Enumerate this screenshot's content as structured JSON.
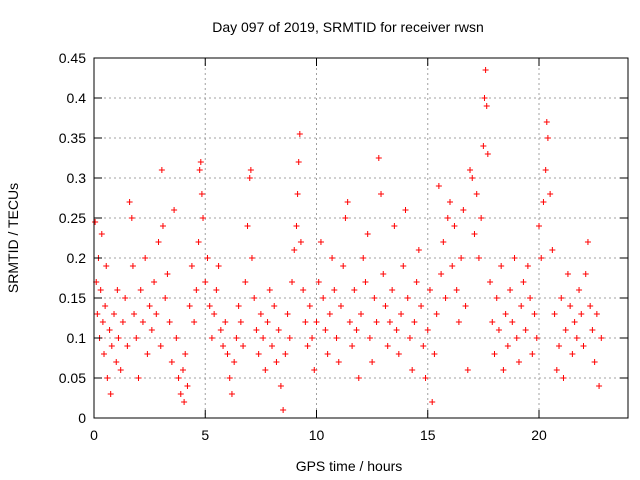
{
  "chart_data": {
    "type": "scatter",
    "title": "Day 097 of 2019, SRMTID for receiver rwsn",
    "xlabel": "GPS time / hours",
    "ylabel": "SRMTID / TECUs",
    "xlim": [
      0,
      24
    ],
    "ylim": [
      0,
      0.45
    ],
    "x_ticks": [
      0,
      5,
      10,
      15,
      20
    ],
    "x_tick_labels": [
      "0",
      "5",
      "10",
      "15",
      "20"
    ],
    "y_ticks": [
      0,
      0.05,
      0.1,
      0.15,
      0.2,
      0.25,
      0.3,
      0.35,
      0.4,
      0.45
    ],
    "y_tick_labels": [
      "0",
      "0.05",
      "0.1",
      "0.15",
      "0.2",
      "0.25",
      "0.3",
      "0.35",
      "0.4",
      "0.45"
    ],
    "grid": true,
    "marker": "+",
    "color": "#ff0000",
    "series": [
      {
        "name": "SRMTID",
        "points": [
          [
            0.05,
            0.245
          ],
          [
            0.1,
            0.17
          ],
          [
            0.15,
            0.13
          ],
          [
            0.2,
            0.2
          ],
          [
            0.25,
            0.1
          ],
          [
            0.3,
            0.16
          ],
          [
            0.35,
            0.23
          ],
          [
            0.4,
            0.12
          ],
          [
            0.45,
            0.08
          ],
          [
            0.5,
            0.14
          ],
          [
            0.55,
            0.19
          ],
          [
            0.6,
            0.05
          ],
          [
            0.7,
            0.11
          ],
          [
            0.75,
            0.03
          ],
          [
            0.8,
            0.09
          ],
          [
            0.9,
            0.13
          ],
          [
            1.0,
            0.07
          ],
          [
            1.05,
            0.16
          ],
          [
            1.1,
            0.1
          ],
          [
            1.2,
            0.06
          ],
          [
            1.3,
            0.12
          ],
          [
            1.4,
            0.15
          ],
          [
            1.5,
            0.09
          ],
          [
            1.6,
            0.27
          ],
          [
            1.7,
            0.25
          ],
          [
            1.75,
            0.19
          ],
          [
            1.8,
            0.13
          ],
          [
            1.9,
            0.1
          ],
          [
            2.0,
            0.05
          ],
          [
            2.1,
            0.16
          ],
          [
            2.2,
            0.12
          ],
          [
            2.3,
            0.2
          ],
          [
            2.4,
            0.08
          ],
          [
            2.5,
            0.14
          ],
          [
            2.6,
            0.11
          ],
          [
            2.7,
            0.17
          ],
          [
            2.8,
            0.13
          ],
          [
            2.9,
            0.22
          ],
          [
            3.0,
            0.09
          ],
          [
            3.05,
            0.31
          ],
          [
            3.1,
            0.24
          ],
          [
            3.2,
            0.15
          ],
          [
            3.3,
            0.18
          ],
          [
            3.4,
            0.12
          ],
          [
            3.5,
            0.07
          ],
          [
            3.6,
            0.26
          ],
          [
            3.7,
            0.1
          ],
          [
            3.8,
            0.05
          ],
          [
            3.9,
            0.03
          ],
          [
            4.0,
            0.06
          ],
          [
            4.05,
            0.02
          ],
          [
            4.1,
            0.08
          ],
          [
            4.2,
            0.04
          ],
          [
            4.3,
            0.14
          ],
          [
            4.4,
            0.19
          ],
          [
            4.5,
            0.12
          ],
          [
            4.6,
            0.16
          ],
          [
            4.7,
            0.22
          ],
          [
            4.75,
            0.31
          ],
          [
            4.8,
            0.32
          ],
          [
            4.85,
            0.28
          ],
          [
            4.9,
            0.25
          ],
          [
            5.0,
            0.17
          ],
          [
            5.1,
            0.2
          ],
          [
            5.2,
            0.14
          ],
          [
            5.3,
            0.1
          ],
          [
            5.4,
            0.13
          ],
          [
            5.5,
            0.16
          ],
          [
            5.6,
            0.19
          ],
          [
            5.7,
            0.11
          ],
          [
            5.8,
            0.09
          ],
          [
            5.9,
            0.12
          ],
          [
            6.0,
            0.08
          ],
          [
            6.1,
            0.05
          ],
          [
            6.2,
            0.03
          ],
          [
            6.3,
            0.07
          ],
          [
            6.4,
            0.1
          ],
          [
            6.5,
            0.14
          ],
          [
            6.6,
            0.12
          ],
          [
            6.7,
            0.09
          ],
          [
            6.8,
            0.17
          ],
          [
            6.9,
            0.24
          ],
          [
            7.0,
            0.3
          ],
          [
            7.05,
            0.31
          ],
          [
            7.1,
            0.2
          ],
          [
            7.2,
            0.15
          ],
          [
            7.3,
            0.11
          ],
          [
            7.4,
            0.08
          ],
          [
            7.5,
            0.13
          ],
          [
            7.6,
            0.1
          ],
          [
            7.7,
            0.06
          ],
          [
            7.8,
            0.12
          ],
          [
            7.9,
            0.16
          ],
          [
            8.0,
            0.09
          ],
          [
            8.1,
            0.14
          ],
          [
            8.2,
            0.07
          ],
          [
            8.3,
            0.11
          ],
          [
            8.4,
            0.04
          ],
          [
            8.5,
            0.01
          ],
          [
            8.6,
            0.08
          ],
          [
            8.7,
            0.13
          ],
          [
            8.8,
            0.1
          ],
          [
            8.9,
            0.17
          ],
          [
            9.0,
            0.21
          ],
          [
            9.1,
            0.24
          ],
          [
            9.15,
            0.28
          ],
          [
            9.2,
            0.32
          ],
          [
            9.25,
            0.355
          ],
          [
            9.3,
            0.22
          ],
          [
            9.4,
            0.16
          ],
          [
            9.5,
            0.12
          ],
          [
            9.6,
            0.09
          ],
          [
            9.7,
            0.14
          ],
          [
            9.8,
            0.1
          ],
          [
            9.9,
            0.06
          ],
          [
            10.0,
            0.12
          ],
          [
            10.1,
            0.17
          ],
          [
            10.2,
            0.22
          ],
          [
            10.3,
            0.15
          ],
          [
            10.4,
            0.11
          ],
          [
            10.5,
            0.08
          ],
          [
            10.6,
            0.13
          ],
          [
            10.7,
            0.2
          ],
          [
            10.8,
            0.16
          ],
          [
            10.9,
            0.1
          ],
          [
            11.0,
            0.07
          ],
          [
            11.1,
            0.14
          ],
          [
            11.2,
            0.19
          ],
          [
            11.3,
            0.25
          ],
          [
            11.4,
            0.27
          ],
          [
            11.5,
            0.12
          ],
          [
            11.6,
            0.09
          ],
          [
            11.7,
            0.16
          ],
          [
            11.8,
            0.11
          ],
          [
            11.9,
            0.05
          ],
          [
            12.0,
            0.13
          ],
          [
            12.1,
            0.2
          ],
          [
            12.2,
            0.17
          ],
          [
            12.3,
            0.23
          ],
          [
            12.4,
            0.1
          ],
          [
            12.5,
            0.07
          ],
          [
            12.6,
            0.15
          ],
          [
            12.7,
            0.12
          ],
          [
            12.8,
            0.325
          ],
          [
            12.9,
            0.28
          ],
          [
            13.0,
            0.18
          ],
          [
            13.1,
            0.14
          ],
          [
            13.2,
            0.09
          ],
          [
            13.3,
            0.12
          ],
          [
            13.4,
            0.16
          ],
          [
            13.5,
            0.24
          ],
          [
            13.6,
            0.11
          ],
          [
            13.7,
            0.08
          ],
          [
            13.8,
            0.13
          ],
          [
            13.9,
            0.19
          ],
          [
            14.0,
            0.26
          ],
          [
            14.1,
            0.15
          ],
          [
            14.2,
            0.1
          ],
          [
            14.3,
            0.06
          ],
          [
            14.4,
            0.12
          ],
          [
            14.5,
            0.17
          ],
          [
            14.6,
            0.21
          ],
          [
            14.7,
            0.14
          ],
          [
            14.8,
            0.09
          ],
          [
            14.9,
            0.05
          ],
          [
            15.0,
            0.11
          ],
          [
            15.1,
            0.16
          ],
          [
            15.2,
            0.02
          ],
          [
            15.3,
            0.08
          ],
          [
            15.4,
            0.13
          ],
          [
            15.5,
            0.29
          ],
          [
            15.6,
            0.18
          ],
          [
            15.7,
            0.22
          ],
          [
            15.8,
            0.15
          ],
          [
            15.9,
            0.25
          ],
          [
            16.0,
            0.27
          ],
          [
            16.1,
            0.19
          ],
          [
            16.2,
            0.24
          ],
          [
            16.3,
            0.16
          ],
          [
            16.4,
            0.12
          ],
          [
            16.5,
            0.2
          ],
          [
            16.6,
            0.26
          ],
          [
            16.7,
            0.14
          ],
          [
            16.8,
            0.06
          ],
          [
            16.9,
            0.31
          ],
          [
            17.0,
            0.3
          ],
          [
            17.1,
            0.23
          ],
          [
            17.2,
            0.28
          ],
          [
            17.3,
            0.2
          ],
          [
            17.4,
            0.25
          ],
          [
            17.5,
            0.34
          ],
          [
            17.55,
            0.4
          ],
          [
            17.6,
            0.435
          ],
          [
            17.65,
            0.39
          ],
          [
            17.7,
            0.33
          ],
          [
            17.8,
            0.17
          ],
          [
            17.9,
            0.12
          ],
          [
            18.0,
            0.08
          ],
          [
            18.1,
            0.15
          ],
          [
            18.2,
            0.11
          ],
          [
            18.3,
            0.19
          ],
          [
            18.4,
            0.06
          ],
          [
            18.5,
            0.13
          ],
          [
            18.6,
            0.09
          ],
          [
            18.7,
            0.16
          ],
          [
            18.8,
            0.12
          ],
          [
            18.9,
            0.2
          ],
          [
            19.0,
            0.1
          ],
          [
            19.1,
            0.07
          ],
          [
            19.2,
            0.14
          ],
          [
            19.3,
            0.17
          ],
          [
            19.4,
            0.11
          ],
          [
            19.5,
            0.19
          ],
          [
            19.6,
            0.15
          ],
          [
            19.7,
            0.08
          ],
          [
            19.8,
            0.13
          ],
          [
            19.9,
            0.1
          ],
          [
            20.0,
            0.24
          ],
          [
            20.1,
            0.2
          ],
          [
            20.2,
            0.27
          ],
          [
            20.3,
            0.31
          ],
          [
            20.35,
            0.37
          ],
          [
            20.4,
            0.35
          ],
          [
            20.5,
            0.28
          ],
          [
            20.6,
            0.21
          ],
          [
            20.7,
            0.13
          ],
          [
            20.8,
            0.06
          ],
          [
            20.9,
            0.09
          ],
          [
            21.0,
            0.15
          ],
          [
            21.1,
            0.05
          ],
          [
            21.2,
            0.11
          ],
          [
            21.3,
            0.18
          ],
          [
            21.4,
            0.14
          ],
          [
            21.5,
            0.08
          ],
          [
            21.6,
            0.12
          ],
          [
            21.7,
            0.1
          ],
          [
            21.8,
            0.16
          ],
          [
            21.9,
            0.13
          ],
          [
            22.0,
            0.09
          ],
          [
            22.1,
            0.18
          ],
          [
            22.2,
            0.22
          ],
          [
            22.3,
            0.14
          ],
          [
            22.4,
            0.11
          ],
          [
            22.5,
            0.07
          ],
          [
            22.6,
            0.13
          ],
          [
            22.7,
            0.04
          ],
          [
            22.8,
            0.1
          ]
        ]
      }
    ]
  }
}
